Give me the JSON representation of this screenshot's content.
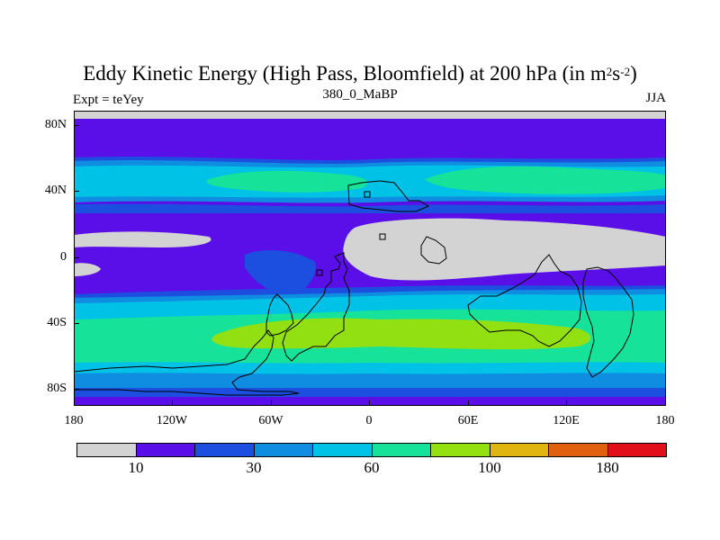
{
  "title": {
    "main": "Eddy Kinetic Energy (High Pass, Bloomfield) at 200 hPa (in m",
    "sup1": "2",
    "mid": "s",
    "sup2": "-2",
    "end": ")"
  },
  "subtitle": "380_0_MaBP",
  "experiment": "Expt = teYey",
  "season": "JJA",
  "axes": {
    "lat_labels": [
      "80N",
      "40N",
      "0",
      "40S",
      "80S"
    ],
    "lon_labels": [
      "180",
      "120W",
      "60W",
      "0",
      "60E",
      "120E",
      "180"
    ]
  },
  "colorbar": {
    "colors": [
      "#d3d3d3",
      "#5b0fe8",
      "#1c4fe0",
      "#0f8de0",
      "#00c2e6",
      "#17e29a",
      "#92e012",
      "#e0b50f",
      "#e0600f",
      "#e00f1a"
    ],
    "labels": [
      "10",
      "30",
      "60",
      "100",
      "180"
    ]
  },
  "palette": {
    "grey": "#d3d3d3",
    "purple": "#5b0fe8",
    "blue": "#1c4fe0",
    "mid_blue": "#0f8de0",
    "cyan": "#00c2e6",
    "green": "#17e29a",
    "lime": "#92e012"
  }
}
